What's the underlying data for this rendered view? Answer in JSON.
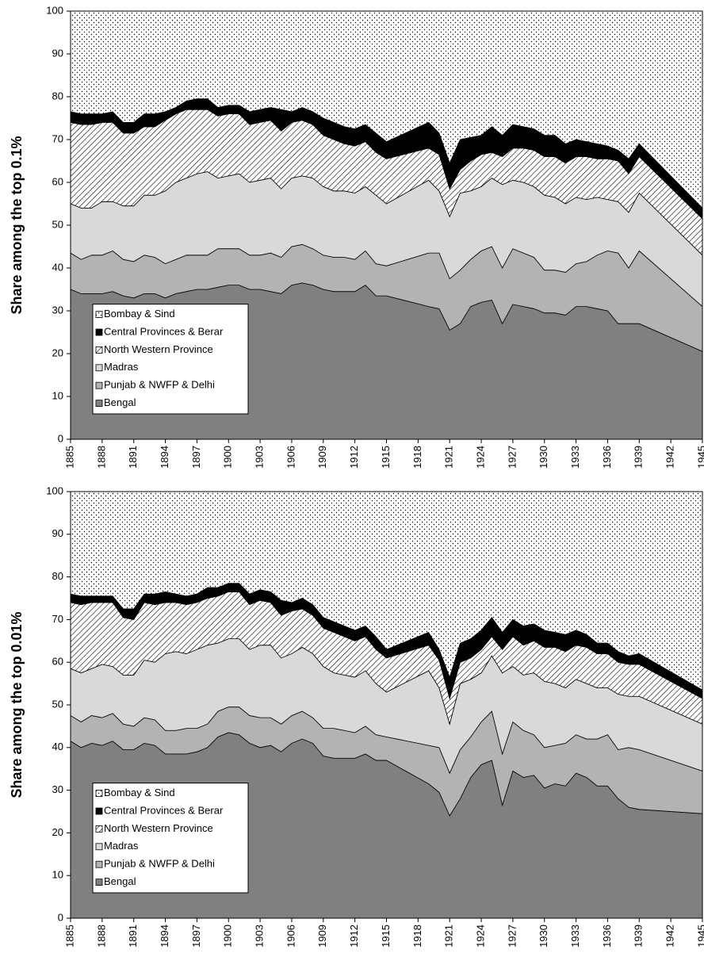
{
  "chart_data": [
    {
      "type": "area",
      "stacked": true,
      "y_label": "Share among the top 0.1%",
      "legend": "lower left",
      "x": [
        1885,
        1886,
        1887,
        1888,
        1889,
        1890,
        1891,
        1892,
        1893,
        1894,
        1895,
        1896,
        1897,
        1898,
        1899,
        1900,
        1901,
        1902,
        1903,
        1904,
        1905,
        1906,
        1907,
        1908,
        1909,
        1910,
        1911,
        1912,
        1913,
        1914,
        1915,
        1919,
        1920,
        1921,
        1922,
        1923,
        1924,
        1925,
        1926,
        1927,
        1928,
        1929,
        1930,
        1931,
        1932,
        1933,
        1934,
        1935,
        1936,
        1937,
        1938,
        1939,
        1945
      ],
      "xlim": [
        1885,
        1945
      ],
      "xticks": [
        1885,
        1888,
        1891,
        1894,
        1897,
        1900,
        1903,
        1906,
        1909,
        1912,
        1915,
        1918,
        1921,
        1924,
        1927,
        1930,
        1933,
        1936,
        1939,
        1942,
        1945
      ],
      "ylim": [
        0,
        100
      ],
      "yticks": [
        0,
        10,
        20,
        30,
        40,
        50,
        60,
        70,
        80,
        90,
        100
      ],
      "series": [
        {
          "name": "Bengal",
          "color": "#808080",
          "values": [
            35,
            34,
            34,
            34,
            34.5,
            33.5,
            33,
            34,
            34,
            33,
            34,
            34.5,
            35,
            35,
            35.5,
            36,
            36,
            35,
            35,
            34.5,
            34,
            36,
            36.5,
            36,
            35,
            34.5,
            34.5,
            34.5,
            36,
            33.5,
            33.5,
            31,
            30.5,
            25.5,
            27,
            31,
            32,
            32.5,
            27,
            31.5,
            31,
            30.5,
            29.5,
            29.5,
            29,
            31,
            31,
            30.5,
            30,
            27,
            27,
            27,
            20.5
          ]
        },
        {
          "name": "Punjab & NWFP & Delhi",
          "color": "#b3b3b3",
          "values": [
            8.5,
            8,
            9,
            9,
            9.5,
            8.5,
            8.5,
            9,
            8.5,
            8,
            8,
            8.5,
            8,
            8,
            9,
            8.5,
            8.5,
            8,
            8,
            9,
            8.5,
            9,
            9,
            8.5,
            8,
            8,
            8,
            7.5,
            8,
            7.5,
            7,
            12.5,
            13,
            12,
            12.5,
            11,
            12,
            12.5,
            13,
            13,
            12.5,
            12,
            10,
            10,
            10,
            10,
            10.5,
            12.5,
            14,
            16.5,
            13,
            17,
            10.5
          ]
        },
        {
          "name": "Madras",
          "color": "#d9d9d9",
          "values": [
            11.5,
            12,
            11,
            12.5,
            11.5,
            12.5,
            13,
            14,
            14.5,
            17,
            18,
            18,
            19,
            19.5,
            16.5,
            17,
            17.5,
            17,
            17.5,
            17.5,
            16,
            16,
            16,
            16.5,
            16,
            15.5,
            15.5,
            15.5,
            15,
            16,
            14.5,
            17,
            14.5,
            14.5,
            18,
            16,
            15,
            16,
            19.5,
            16,
            16.5,
            16.5,
            17.5,
            17,
            16,
            15.5,
            14.5,
            13.5,
            12,
            12,
            13,
            13.5,
            12
          ]
        },
        {
          "name": "North Western Province",
          "color": "#ffffff",
          "pattern": "hatch",
          "values": [
            19,
            19.5,
            19.5,
            18.5,
            18.5,
            17,
            17,
            16,
            16,
            16.5,
            16,
            16,
            15,
            14.5,
            14.5,
            14.5,
            14,
            13.5,
            13.5,
            13.5,
            13.5,
            13,
            13,
            12.5,
            12,
            12,
            11,
            11,
            10.5,
            10,
            10.5,
            7.5,
            8.5,
            6.5,
            5.5,
            7,
            7.5,
            6,
            6.5,
            7.5,
            8,
            8.5,
            9,
            9.5,
            9.5,
            9.5,
            10,
            9,
            9.5,
            9.5,
            9,
            8.5,
            8.5
          ]
        },
        {
          "name": "Central Provinces & Berar",
          "color": "#000000",
          "values": [
            2.5,
            2.5,
            2.5,
            2,
            2.5,
            2.5,
            2.5,
            3,
            3,
            2,
            1.5,
            2,
            2.5,
            2.5,
            2,
            2,
            2,
            3,
            3,
            3,
            5,
            2.5,
            3,
            3,
            4,
            4,
            4,
            4,
            4,
            4.5,
            4,
            6,
            5,
            6,
            7,
            5.5,
            4.5,
            6,
            5,
            5.5,
            5,
            5,
            5,
            5,
            4.5,
            4,
            3.5,
            3.5,
            3,
            2.5,
            3.5,
            3,
            2.5
          ]
        },
        {
          "name": "Bombay & Sind",
          "color": "#ffffff",
          "pattern": "dots",
          "values": [
            23.5,
            24,
            24,
            24,
            23.5,
            26,
            26,
            24,
            24,
            23.5,
            22.5,
            21,
            20.5,
            20.5,
            22.5,
            22,
            22,
            23.5,
            23,
            22.5,
            23,
            23.5,
            22.5,
            23.5,
            25,
            26,
            27,
            27.5,
            26.5,
            28.5,
            30.5,
            26,
            28.5,
            35.5,
            30,
            29.5,
            29,
            27,
            29,
            26.5,
            27,
            27.5,
            29,
            29,
            31,
            30,
            30.5,
            31,
            31.5,
            32.5,
            34.5,
            31,
            46
          ]
        }
      ]
    },
    {
      "type": "area",
      "stacked": true,
      "y_label": "Share among the top 0.01%",
      "legend": "lower left",
      "x": [
        1885,
        1886,
        1887,
        1888,
        1889,
        1890,
        1891,
        1892,
        1893,
        1894,
        1895,
        1896,
        1897,
        1898,
        1899,
        1900,
        1901,
        1902,
        1903,
        1904,
        1905,
        1906,
        1907,
        1908,
        1909,
        1910,
        1911,
        1912,
        1913,
        1914,
        1915,
        1919,
        1920,
        1921,
        1922,
        1923,
        1924,
        1925,
        1926,
        1927,
        1928,
        1929,
        1930,
        1931,
        1932,
        1933,
        1934,
        1935,
        1936,
        1937,
        1938,
        1939,
        1945
      ],
      "xlim": [
        1885,
        1945
      ],
      "xticks": [
        1885,
        1888,
        1891,
        1894,
        1897,
        1900,
        1903,
        1906,
        1909,
        1912,
        1915,
        1918,
        1921,
        1924,
        1927,
        1930,
        1933,
        1936,
        1939,
        1942,
        1945
      ],
      "ylim": [
        0,
        100
      ],
      "yticks": [
        0,
        10,
        20,
        30,
        40,
        50,
        60,
        70,
        80,
        90,
        100
      ],
      "series": [
        {
          "name": "Bengal",
          "color": "#808080",
          "values": [
            41.5,
            40,
            41,
            40.5,
            41.5,
            39.5,
            39.5,
            41,
            40.5,
            38.5,
            38.5,
            38.5,
            39,
            40,
            42.5,
            43.5,
            43,
            41,
            40,
            40.5,
            39,
            41,
            42,
            41,
            38,
            37.5,
            37.5,
            37.5,
            38.5,
            37,
            37,
            31.5,
            29.5,
            24,
            28,
            33,
            36,
            37,
            26.5,
            34.5,
            33,
            33.5,
            30.5,
            31.5,
            31,
            34,
            33,
            31,
            31,
            28,
            26,
            25.5,
            24.5
          ]
        },
        {
          "name": "Punjab & NWFP & Delhi",
          "color": "#b3b3b3",
          "values": [
            6,
            6,
            6.5,
            6.5,
            6.5,
            6,
            5.5,
            6,
            6,
            5.5,
            5.5,
            6,
            5.5,
            5.5,
            6,
            6,
            6.5,
            6.5,
            7,
            6.5,
            6.5,
            6.5,
            6.5,
            6,
            6.5,
            7,
            6.5,
            6,
            6.5,
            6,
            5.5,
            9,
            10.5,
            10,
            11.5,
            9.5,
            10,
            11.5,
            12,
            11.5,
            11,
            9.5,
            9.5,
            9,
            10,
            9,
            9,
            11,
            12,
            11.5,
            14,
            14,
            10
          ]
        },
        {
          "name": "Madras",
          "color": "#d9d9d9",
          "values": [
            11,
            11.5,
            11,
            12.5,
            11,
            11.5,
            12,
            13.5,
            13.5,
            18,
            18.5,
            17.5,
            18.5,
            18.5,
            16,
            16,
            16,
            15.5,
            17,
            17,
            15.5,
            14.5,
            15,
            15,
            14.5,
            13,
            13,
            13,
            13,
            12,
            10.5,
            17.5,
            14,
            11.5,
            15.5,
            13.5,
            11.5,
            13,
            19,
            13,
            13,
            14.5,
            15.5,
            14.5,
            13,
            13,
            13,
            12,
            11,
            13,
            12,
            12.5,
            11
          ]
        },
        {
          "name": "North Western Province",
          "color": "#ffffff",
          "pattern": "hatch",
          "values": [
            15.5,
            16,
            15.5,
            14.5,
            15,
            13.5,
            13,
            13.5,
            13.5,
            12,
            11.5,
            11.5,
            11,
            11,
            11,
            11,
            11,
            10.5,
            10.5,
            10,
            10,
            10,
            9,
            9,
            9,
            9.5,
            9,
            8.5,
            8,
            8,
            8,
            6,
            6.5,
            6,
            5,
            5,
            5.5,
            4.5,
            5.5,
            7,
            7,
            7.5,
            8,
            8.5,
            8.5,
            8,
            8.5,
            8,
            8,
            7.5,
            7.5,
            7.5,
            6
          ]
        },
        {
          "name": "Central Provinces & Berar",
          "color": "#000000",
          "values": [
            2,
            2,
            1.5,
            1.5,
            1.5,
            2,
            2.5,
            2,
            2.5,
            2.5,
            2,
            2,
            2,
            2.5,
            2,
            2,
            2,
            2.5,
            2.5,
            2.5,
            3.5,
            2,
            2.5,
            2.5,
            2.5,
            2.5,
            2.5,
            2.5,
            2.5,
            3,
            2,
            3,
            2.5,
            5,
            4.5,
            4.5,
            4.5,
            4.5,
            4,
            4,
            4.5,
            4,
            4,
            3.5,
            4,
            3.5,
            3,
            2.5,
            2.5,
            2.5,
            2,
            2.5,
            2
          ]
        },
        {
          "name": "Bombay & Sind",
          "color": "#ffffff",
          "pattern": "dots",
          "values": [
            24,
            24.5,
            24.5,
            24.5,
            24.5,
            27.5,
            27.5,
            24,
            24,
            23.5,
            24,
            24.5,
            24,
            22.5,
            22.5,
            21.5,
            21.5,
            24,
            23,
            23.5,
            25.5,
            26,
            25,
            26.5,
            29.5,
            30.5,
            31.5,
            32.5,
            31.5,
            34,
            37,
            33,
            37,
            43.5,
            35.5,
            34.5,
            32.5,
            29.5,
            33,
            30,
            31.5,
            31,
            32.5,
            33,
            33.5,
            32.5,
            33.5,
            35.5,
            35.5,
            37.5,
            38.5,
            38,
            46.5
          ]
        }
      ]
    }
  ]
}
